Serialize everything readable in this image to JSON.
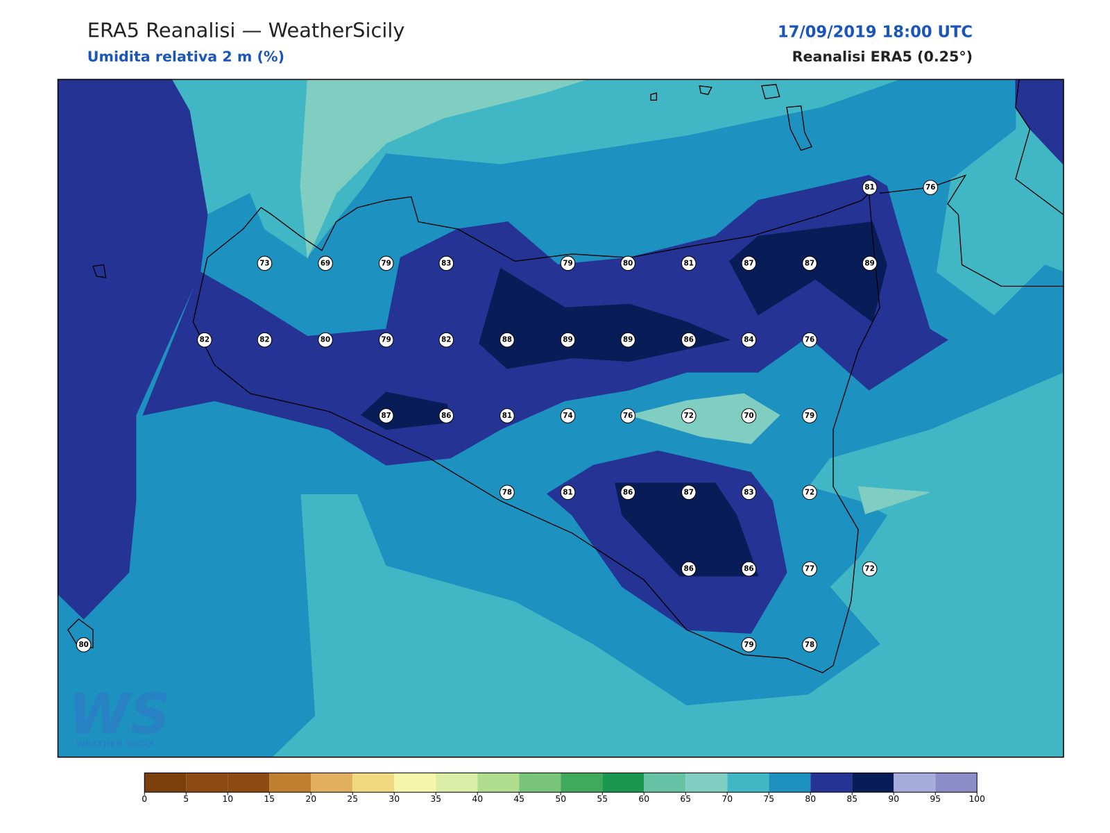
{
  "header": {
    "title": "ERA5 Reanalisi — WeatherSicily",
    "subtitle": "Umidita relativa 2 m (%)",
    "datetime": "17/09/2019 18:00 UTC",
    "source": "Reanalisi ERA5 (0.25°)"
  },
  "stations": [
    81,
    76,
    73,
    69,
    79,
    83,
    79,
    80,
    81,
    87,
    87,
    89,
    82,
    82,
    80,
    79,
    82,
    88,
    89,
    89,
    86,
    84,
    76,
    87,
    86,
    81,
    74,
    76,
    72,
    70,
    79,
    78,
    81,
    86,
    87,
    83,
    72,
    86,
    86,
    77,
    72,
    80,
    79,
    78
  ],
  "colorbar": {
    "ticks": [
      0,
      5,
      10,
      15,
      20,
      25,
      30,
      35,
      40,
      45,
      50,
      55,
      60,
      65,
      70,
      75,
      80,
      85,
      90,
      95,
      100
    ],
    "colors": [
      "#7a3f0a",
      "#8c4b10",
      "#8c4b10",
      "#c07f2e",
      "#e0b060",
      "#f0d880",
      "#f6f6aa",
      "#dbeda6",
      "#aedd90",
      "#78c47a",
      "#3fa95c",
      "#1a9850",
      "#66c2a4",
      "#80cdc1",
      "#41b6c4",
      "#1d91c0",
      "#253494",
      "#081d58",
      "#a6acdc",
      "#8c8cc8"
    ]
  },
  "logo": {
    "mark": "WS",
    "text": "WEATHER SICILY"
  }
}
